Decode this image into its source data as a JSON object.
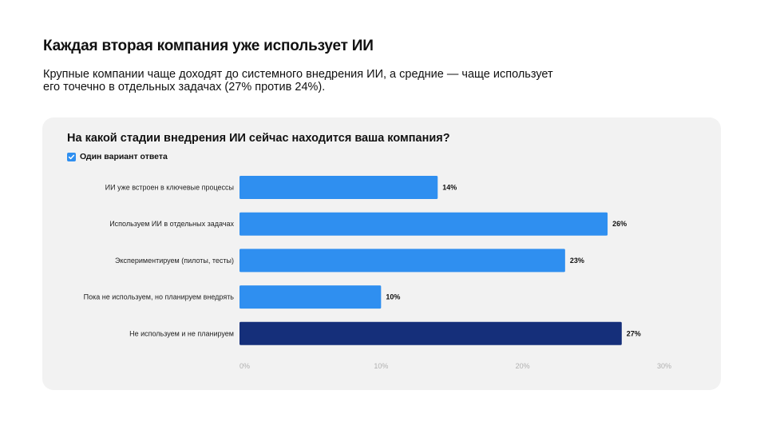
{
  "header": {
    "title": "Каждая вторая компания уже использует ИИ",
    "subtitle": "Крупные компании чаще доходят до системного внедрения ИИ, а средние — чаще использует его точечно в отдельных задачах (27% против 24%)."
  },
  "card": {
    "question": "На какой стадии внедрения ИИ сейчас находится ваша компания?",
    "answer_type": "Один вариант ответа",
    "checkbox_icon": "checkmark-icon"
  },
  "chart_data": {
    "type": "bar",
    "orientation": "horizontal",
    "categories": [
      "ИИ уже встроен в ключевые процессы",
      "Используем ИИ в отдельных задачах",
      "Экспериментируем (пилоты, тесты)",
      "Пока не используем, но планируем внедрять",
      "Не используем и не планируем"
    ],
    "values": [
      14,
      26,
      23,
      10,
      27
    ],
    "value_labels": [
      "14%",
      "26%",
      "23%",
      "10%",
      "27%"
    ],
    "bar_colors": [
      "#2f8ff0",
      "#2f8ff0",
      "#2f8ff0",
      "#2f8ff0",
      "#152f7a"
    ],
    "xlim": [
      0,
      30
    ],
    "xticks": [
      0,
      10,
      20,
      30
    ],
    "xtick_labels": [
      "0%",
      "10%",
      "20%",
      "30%"
    ],
    "grid": false,
    "legend": "none"
  },
  "colors": {
    "accent": "#2f8ff0",
    "highlight": "#152f7a",
    "card_background": "#f2f2f2"
  }
}
